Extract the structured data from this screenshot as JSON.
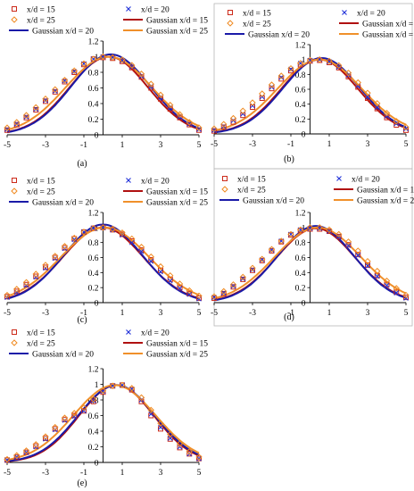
{
  "colors": {
    "x15": "#cc2a1a",
    "x20": "#2030d8",
    "x25": "#f08a20",
    "g15": "#b01010",
    "g20": "#1a1aa8",
    "g25": "#f0902a"
  },
  "legend": [
    {
      "label": "x/d = 15",
      "kind": "square",
      "color_key": "x15"
    },
    {
      "label": "x/d = 20",
      "kind": "cross",
      "color_key": "x20"
    },
    {
      "label": "x/d = 25",
      "kind": "diamond",
      "color_key": "x25"
    },
    {
      "label": "Gaussian x/d = 15",
      "kind": "line",
      "color_key": "g15"
    },
    {
      "label": "Gaussian x/d = 20",
      "kind": "line",
      "color_key": "g20"
    },
    {
      "label": "Gaussian x/d = 25",
      "kind": "line",
      "color_key": "g25"
    }
  ],
  "chart_data": [
    {
      "type": "scatter",
      "panel_label": "(a)",
      "xlim": [
        -5,
        5
      ],
      "ylim": [
        0,
        1.2
      ],
      "x_ticks": [
        "-5",
        "-3",
        "-1",
        "1",
        "3",
        "5"
      ],
      "y_ticks": [
        "0",
        "0.2",
        "0.4",
        "0.6",
        "0.8",
        "1",
        "1.2"
      ],
      "grid": false,
      "series": [
        {
          "name": "x/d = 15",
          "kind": "square",
          "color_key": "x15",
          "x": [
            -5.0,
            -4.5,
            -4.0,
            -3.5,
            -3.0,
            -2.5,
            -2.0,
            -1.5,
            -1.0,
            -0.5,
            0.0,
            0.5,
            1.0,
            1.5,
            2.0,
            2.5,
            3.0,
            3.5,
            4.0,
            4.5,
            5.0
          ],
          "y": [
            0.06,
            0.13,
            0.22,
            0.32,
            0.43,
            0.55,
            0.68,
            0.8,
            0.9,
            0.97,
            0.99,
            0.98,
            0.94,
            0.86,
            0.74,
            0.6,
            0.46,
            0.33,
            0.22,
            0.13,
            0.06
          ]
        },
        {
          "name": "x/d = 20",
          "kind": "cross",
          "color_key": "x20",
          "x": [
            -5.0,
            -4.5,
            -4.0,
            -3.5,
            -3.0,
            -2.5,
            -2.0,
            -1.5,
            -1.0,
            -0.5,
            0.0,
            0.5,
            1.0,
            1.5,
            2.0,
            2.5,
            3.0,
            3.5,
            4.0,
            4.5,
            5.0
          ],
          "y": [
            0.07,
            0.14,
            0.23,
            0.33,
            0.44,
            0.56,
            0.69,
            0.81,
            0.91,
            0.97,
            1.0,
            0.99,
            0.95,
            0.87,
            0.75,
            0.62,
            0.48,
            0.35,
            0.23,
            0.14,
            0.07
          ]
        },
        {
          "name": "x/d = 25",
          "kind": "diamond",
          "color_key": "x25",
          "x": [
            -5.0,
            -4.5,
            -4.0,
            -3.5,
            -3.0,
            -2.5,
            -2.0,
            -1.5,
            -1.0,
            -0.5,
            0.0,
            0.5,
            1.0,
            1.5,
            2.0,
            2.5,
            3.0,
            3.5,
            4.0,
            4.5,
            5.0
          ],
          "y": [
            0.09,
            0.16,
            0.25,
            0.35,
            0.46,
            0.58,
            0.7,
            0.82,
            0.91,
            0.97,
            1.0,
            0.99,
            0.96,
            0.89,
            0.78,
            0.65,
            0.51,
            0.38,
            0.26,
            0.16,
            0.09
          ]
        },
        {
          "name": "Gaussian x/d = 15",
          "kind": "line",
          "color_key": "g15",
          "mu": 0.3,
          "sigma": 2.05,
          "amp": 1.0
        },
        {
          "name": "Gaussian x/d = 20",
          "kind": "line",
          "color_key": "g20",
          "mu": 0.4,
          "sigma": 2.05,
          "amp": 1.03
        },
        {
          "name": "Gaussian x/d = 25",
          "kind": "line",
          "color_key": "g25",
          "mu": 0.3,
          "sigma": 2.25,
          "amp": 1.0
        }
      ]
    },
    {
      "type": "scatter",
      "panel_label": "(b)",
      "xlim": [
        -5,
        5
      ],
      "ylim": [
        0,
        1.2
      ],
      "x_ticks": [
        "-5",
        "-3",
        "-1",
        "1",
        "3",
        "5"
      ],
      "y_ticks": [
        "0",
        "0.2",
        "0.4",
        "0.6",
        "0.8",
        "1",
        "1.2"
      ],
      "grid": false,
      "series": [
        {
          "name": "x/d = 15",
          "kind": "square",
          "color_key": "x15",
          "x": [
            -5.0,
            -4.5,
            -4.0,
            -3.5,
            -3.0,
            -2.5,
            -2.0,
            -1.5,
            -1.0,
            -0.5,
            0.0,
            0.5,
            1.0,
            1.5,
            2.0,
            2.5,
            3.0,
            3.5,
            4.0,
            4.5,
            5.0
          ],
          "y": [
            0.04,
            0.09,
            0.16,
            0.25,
            0.36,
            0.48,
            0.61,
            0.74,
            0.85,
            0.93,
            0.98,
            0.99,
            0.96,
            0.89,
            0.77,
            0.63,
            0.48,
            0.34,
            0.22,
            0.12,
            0.05
          ]
        },
        {
          "name": "x/d = 20",
          "kind": "cross",
          "color_key": "x20",
          "x": [
            -5.0,
            -4.5,
            -4.0,
            -3.5,
            -3.0,
            -2.5,
            -2.0,
            -1.5,
            -1.0,
            -0.5,
            0.0,
            0.5,
            1.0,
            1.5,
            2.0,
            2.5,
            3.0,
            3.5,
            4.0,
            4.5,
            5.0
          ],
          "y": [
            0.05,
            0.1,
            0.18,
            0.27,
            0.38,
            0.5,
            0.63,
            0.76,
            0.87,
            0.95,
            0.99,
            1.0,
            0.97,
            0.9,
            0.79,
            0.65,
            0.5,
            0.36,
            0.24,
            0.14,
            0.07
          ]
        },
        {
          "name": "x/d = 25",
          "kind": "diamond",
          "color_key": "x25",
          "x": [
            -5.0,
            -4.5,
            -4.0,
            -3.5,
            -3.0,
            -2.5,
            -2.0,
            -1.5,
            -1.0,
            -0.5,
            0.0,
            0.5,
            1.0,
            1.5,
            2.0,
            2.5,
            3.0,
            3.5,
            4.0,
            4.5,
            5.0
          ],
          "y": [
            0.07,
            0.13,
            0.21,
            0.31,
            0.42,
            0.54,
            0.66,
            0.78,
            0.88,
            0.95,
            0.99,
            1.0,
            0.98,
            0.92,
            0.82,
            0.69,
            0.55,
            0.41,
            0.28,
            0.17,
            0.09
          ]
        },
        {
          "name": "Gaussian x/d = 15",
          "kind": "line",
          "color_key": "g15",
          "mu": 0.5,
          "sigma": 2.0,
          "amp": 1.0
        },
        {
          "name": "Gaussian x/d = 20",
          "kind": "line",
          "color_key": "g20",
          "mu": 0.6,
          "sigma": 2.0,
          "amp": 1.02
        },
        {
          "name": "Gaussian x/d = 25",
          "kind": "line",
          "color_key": "g25",
          "mu": 0.5,
          "sigma": 2.2,
          "amp": 1.0
        }
      ]
    },
    {
      "type": "scatter",
      "panel_label": "(c)",
      "xlim": [
        -5,
        5
      ],
      "ylim": [
        0,
        1.2
      ],
      "x_ticks": [
        "-5",
        "-3",
        "-1",
        "1",
        "3",
        "5"
      ],
      "y_ticks": [
        "0",
        "0.2",
        "0.4",
        "0.6",
        "0.8",
        "1",
        "1.2"
      ],
      "grid": false,
      "series": [
        {
          "name": "x/d = 15",
          "kind": "square",
          "color_key": "x15",
          "x": [
            -5.0,
            -4.5,
            -4.0,
            -3.5,
            -3.0,
            -2.5,
            -2.0,
            -1.5,
            -1.0,
            -0.5,
            0.0,
            0.5,
            1.0,
            1.5,
            2.0,
            2.5,
            3.0,
            3.5,
            4.0,
            4.5,
            5.0
          ],
          "y": [
            0.08,
            0.15,
            0.24,
            0.35,
            0.47,
            0.6,
            0.73,
            0.85,
            0.94,
            0.99,
            1.0,
            0.97,
            0.91,
            0.82,
            0.7,
            0.57,
            0.43,
            0.31,
            0.2,
            0.12,
            0.06
          ]
        },
        {
          "name": "x/d = 20",
          "kind": "cross",
          "color_key": "x20",
          "x": [
            -5.0,
            -4.5,
            -4.0,
            -3.5,
            -3.0,
            -2.5,
            -2.0,
            -1.5,
            -1.0,
            -0.5,
            0.0,
            0.5,
            1.0,
            1.5,
            2.0,
            2.5,
            3.0,
            3.5,
            4.0,
            4.5,
            5.0
          ],
          "y": [
            0.07,
            0.14,
            0.23,
            0.34,
            0.46,
            0.59,
            0.72,
            0.84,
            0.94,
            0.99,
            1.0,
            0.97,
            0.9,
            0.8,
            0.68,
            0.55,
            0.41,
            0.29,
            0.19,
            0.11,
            0.05
          ]
        },
        {
          "name": "x/d = 25",
          "kind": "diamond",
          "color_key": "x25",
          "x": [
            -5.0,
            -4.5,
            -4.0,
            -3.5,
            -3.0,
            -2.5,
            -2.0,
            -1.5,
            -1.0,
            -0.5,
            0.0,
            0.5,
            1.0,
            1.5,
            2.0,
            2.5,
            3.0,
            3.5,
            4.0,
            4.5,
            5.0
          ],
          "y": [
            0.1,
            0.18,
            0.27,
            0.38,
            0.5,
            0.62,
            0.75,
            0.86,
            0.94,
            0.99,
            1.0,
            0.98,
            0.93,
            0.85,
            0.74,
            0.61,
            0.48,
            0.36,
            0.25,
            0.16,
            0.09
          ]
        },
        {
          "name": "Gaussian x/d = 15",
          "kind": "line",
          "color_key": "g15",
          "mu": 0.0,
          "sigma": 2.1,
          "amp": 1.0
        },
        {
          "name": "Gaussian x/d = 20",
          "kind": "line",
          "color_key": "g20",
          "mu": 0.0,
          "sigma": 2.05,
          "amp": 1.04
        },
        {
          "name": "Gaussian x/d = 25",
          "kind": "line",
          "color_key": "g25",
          "mu": 0.1,
          "sigma": 2.3,
          "amp": 1.0
        }
      ]
    },
    {
      "type": "scatter",
      "panel_label": "(d)",
      "xlim": [
        -5,
        5
      ],
      "ylim": [
        0,
        1.2
      ],
      "x_ticks": [
        "-5",
        "-3",
        "-1",
        "1",
        "3",
        "5"
      ],
      "y_ticks": [
        "0",
        "0.2",
        "0.4",
        "0.6",
        "0.8",
        "1",
        "1.2"
      ],
      "grid": false,
      "series": [
        {
          "name": "x/d = 15",
          "kind": "square",
          "color_key": "x15",
          "x": [
            -5.0,
            -4.5,
            -4.0,
            -3.5,
            -3.0,
            -2.5,
            -2.0,
            -1.5,
            -1.0,
            -0.5,
            0.0,
            0.5,
            1.0,
            1.5,
            2.0,
            2.5,
            3.0,
            3.5,
            4.0,
            4.5,
            5.0
          ],
          "y": [
            0.06,
            0.12,
            0.21,
            0.31,
            0.43,
            0.56,
            0.69,
            0.81,
            0.9,
            0.96,
            0.98,
            0.98,
            0.95,
            0.88,
            0.77,
            0.64,
            0.5,
            0.36,
            0.24,
            0.14,
            0.07
          ]
        },
        {
          "name": "x/d = 20",
          "kind": "cross",
          "color_key": "x20",
          "x": [
            -5.0,
            -4.5,
            -4.0,
            -3.5,
            -3.0,
            -2.5,
            -2.0,
            -1.5,
            -1.0,
            -0.5,
            0.0,
            0.5,
            1.0,
            1.5,
            2.0,
            2.5,
            3.0,
            3.5,
            4.0,
            4.5,
            5.0
          ],
          "y": [
            0.07,
            0.13,
            0.22,
            0.32,
            0.44,
            0.57,
            0.7,
            0.82,
            0.91,
            0.97,
            0.99,
            0.99,
            0.95,
            0.88,
            0.76,
            0.63,
            0.49,
            0.35,
            0.23,
            0.13,
            0.06
          ]
        },
        {
          "name": "x/d = 25",
          "kind": "diamond",
          "color_key": "x25",
          "x": [
            -5.0,
            -4.5,
            -4.0,
            -3.5,
            -3.0,
            -2.5,
            -2.0,
            -1.5,
            -1.0,
            -0.5,
            0.0,
            0.5,
            1.0,
            1.5,
            2.0,
            2.5,
            3.0,
            3.5,
            4.0,
            4.5,
            5.0
          ],
          "y": [
            0.08,
            0.15,
            0.24,
            0.34,
            0.46,
            0.58,
            0.71,
            0.82,
            0.91,
            0.97,
            1.0,
            1.0,
            0.97,
            0.91,
            0.81,
            0.69,
            0.55,
            0.42,
            0.29,
            0.19,
            0.1
          ]
        },
        {
          "name": "Gaussian x/d = 15",
          "kind": "line",
          "color_key": "g15",
          "mu": 0.3,
          "sigma": 2.05,
          "amp": 0.99
        },
        {
          "name": "Gaussian x/d = 20",
          "kind": "line",
          "color_key": "g20",
          "mu": 0.3,
          "sigma": 2.0,
          "amp": 1.02
        },
        {
          "name": "Gaussian x/d = 25",
          "kind": "line",
          "color_key": "g25",
          "mu": 0.4,
          "sigma": 2.25,
          "amp": 1.0
        }
      ]
    },
    {
      "type": "scatter",
      "panel_label": "(e)",
      "xlim": [
        -5,
        5
      ],
      "ylim": [
        0,
        1.2
      ],
      "x_ticks": [
        "-5",
        "-3",
        "-1",
        "1",
        "3",
        "5"
      ],
      "y_ticks": [
        "0",
        "0.2",
        "0.4",
        "0.6",
        "0.8",
        "1",
        "1.2"
      ],
      "grid": false,
      "series": [
        {
          "name": "x/d = 15",
          "kind": "square",
          "color_key": "x15",
          "x": [
            -5.0,
            -4.5,
            -4.0,
            -3.5,
            -3.0,
            -2.5,
            -2.0,
            -1.5,
            -1.0,
            -0.5,
            0.0,
            0.5,
            1.0,
            1.5,
            2.0,
            2.5,
            3.0,
            3.5,
            4.0,
            4.5,
            5.0
          ],
          "y": [
            0.03,
            0.07,
            0.13,
            0.21,
            0.31,
            0.43,
            0.55,
            0.6,
            0.66,
            0.78,
            0.9,
            0.98,
            0.99,
            0.93,
            0.78,
            0.6,
            0.43,
            0.3,
            0.19,
            0.11,
            0.05
          ]
        },
        {
          "name": "x/d = 20",
          "kind": "cross",
          "color_key": "x20",
          "x": [
            -5.0,
            -4.5,
            -4.0,
            -3.5,
            -3.0,
            -2.5,
            -2.0,
            -1.5,
            -1.0,
            -0.5,
            0.0,
            0.5,
            1.0,
            1.5,
            2.0,
            2.5,
            3.0,
            3.5,
            4.0,
            4.5,
            5.0
          ],
          "y": [
            0.03,
            0.07,
            0.13,
            0.2,
            0.3,
            0.42,
            0.54,
            0.59,
            0.66,
            0.79,
            0.91,
            0.98,
            0.99,
            0.94,
            0.8,
            0.62,
            0.45,
            0.31,
            0.2,
            0.11,
            0.05
          ]
        },
        {
          "name": "x/d = 25",
          "kind": "diamond",
          "color_key": "x25",
          "x": [
            -5.0,
            -4.5,
            -4.0,
            -3.5,
            -3.0,
            -2.5,
            -2.0,
            -1.5,
            -1.0,
            -0.5,
            0.0,
            0.5,
            1.0,
            1.5,
            2.0,
            2.5,
            3.0,
            3.5,
            4.0,
            4.5,
            5.0
          ],
          "y": [
            0.04,
            0.09,
            0.15,
            0.23,
            0.33,
            0.45,
            0.57,
            0.63,
            0.7,
            0.81,
            0.92,
            0.98,
            0.99,
            0.95,
            0.83,
            0.67,
            0.5,
            0.36,
            0.24,
            0.14,
            0.07
          ]
        },
        {
          "name": "Gaussian x/d = 15",
          "kind": "line",
          "color_key": "g15",
          "mu": 0.7,
          "sigma": 1.95,
          "amp": 0.99
        },
        {
          "name": "Gaussian x/d = 20",
          "kind": "line",
          "color_key": "g20",
          "mu": 0.7,
          "sigma": 2.0,
          "amp": 0.99
        },
        {
          "name": "Gaussian x/d = 25",
          "kind": "line",
          "color_key": "g25",
          "mu": 0.6,
          "sigma": 2.15,
          "amp": 0.99
        }
      ]
    }
  ]
}
